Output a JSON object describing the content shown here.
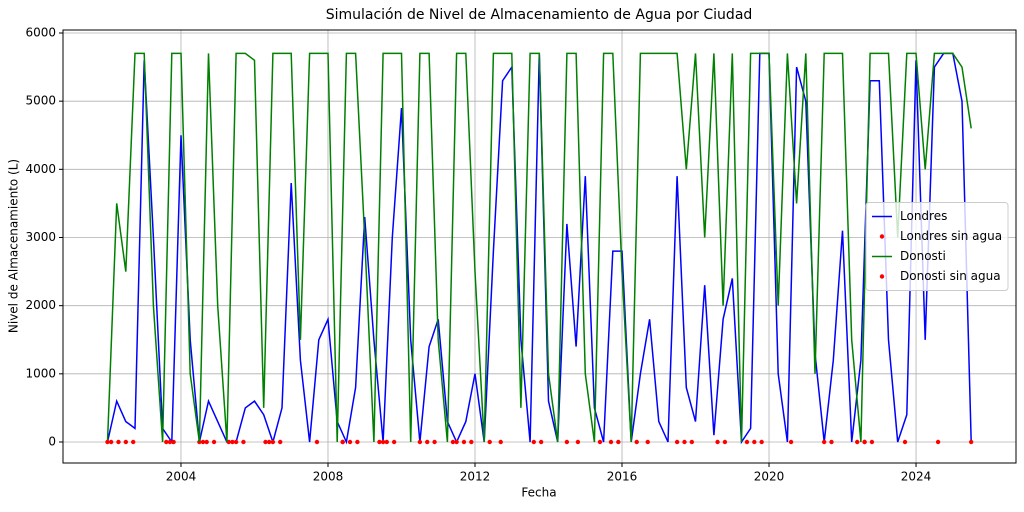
{
  "chart_data": {
    "type": "line",
    "title": "Simulación de Nivel de Almacenamiento de Agua por Ciudad",
    "xlabel": "Fecha",
    "ylabel": "Nivel de Almacenamiento (L)",
    "xlim": [
      2000.79,
      2026.72
    ],
    "ylim": [
      -308,
      6044
    ],
    "xticks": [
      2004,
      2008,
      2012,
      2016,
      2020,
      2024
    ],
    "yticks": [
      0,
      1000,
      2000,
      3000,
      4000,
      5000,
      6000
    ],
    "grid": true,
    "legend": "center right",
    "x": [
      2002,
      2002.25,
      2002.5,
      2002.75,
      2003,
      2003.25,
      2003.5,
      2003.75,
      2004,
      2004.25,
      2004.5,
      2004.75,
      2005,
      2005.25,
      2005.5,
      2005.75,
      2006,
      2006.25,
      2006.5,
      2006.75,
      2007,
      2007.25,
      2007.5,
      2007.75,
      2008,
      2008.25,
      2008.5,
      2008.75,
      2009,
      2009.25,
      2009.5,
      2009.75,
      2010,
      2010.25,
      2010.5,
      2010.75,
      2011,
      2011.25,
      2011.5,
      2011.75,
      2012,
      2012.25,
      2012.5,
      2012.75,
      2013,
      2013.25,
      2013.5,
      2013.75,
      2014,
      2014.25,
      2014.5,
      2014.75,
      2015,
      2015.25,
      2015.5,
      2015.75,
      2016,
      2016.25,
      2016.5,
      2016.75,
      2017,
      2017.25,
      2017.5,
      2017.75,
      2018,
      2018.25,
      2018.5,
      2018.75,
      2019,
      2019.25,
      2019.5,
      2019.75,
      2020,
      2020.25,
      2020.5,
      2020.75,
      2021,
      2021.25,
      2021.5,
      2021.75,
      2022,
      2022.25,
      2022.5,
      2022.75,
      2023,
      2023.25,
      2023.5,
      2023.75,
      2024,
      2024.25,
      2024.5,
      2024.75,
      2025,
      2025.25,
      2025.5
    ],
    "series": [
      {
        "name": "Londres",
        "kind": "line",
        "color": "#0000ff",
        "values": [
          0,
          600,
          300,
          200,
          5600,
          3000,
          200,
          0,
          4500,
          1500,
          0,
          600,
          300,
          0,
          0,
          500,
          600,
          400,
          0,
          500,
          3800,
          1200,
          0,
          1500,
          1800,
          300,
          0,
          800,
          3300,
          1500,
          0,
          3000,
          4900,
          1500,
          0,
          1400,
          1800,
          300,
          0,
          300,
          1000,
          0,
          2800,
          5300,
          5500,
          1500,
          0,
          5700,
          600,
          0,
          3200,
          1400,
          3900,
          500,
          0,
          2800,
          2800,
          0,
          1000,
          1800,
          300,
          0,
          3900,
          800,
          300,
          2300,
          100,
          1800,
          2400,
          0,
          200,
          5700,
          5700,
          1000,
          0,
          5500,
          5000,
          1300,
          0,
          1200,
          3100,
          0,
          1200,
          5300,
          5300,
          1500,
          0,
          400,
          5600,
          1500,
          5500,
          5700,
          5700,
          5000,
          0
        ]
      },
      {
        "name": "Londres sin agua",
        "kind": "scatter",
        "color": "#ff0000",
        "x": [
          2002.1,
          2002.3,
          2002.5,
          2002.7,
          2003.6,
          2003.8,
          2004.5,
          2004.7,
          2004.9,
          2005.3,
          2005.5,
          2005.7,
          2006.3,
          2006.5,
          2006.7,
          2007.7,
          2008.4,
          2008.6,
          2008.8,
          2009.4,
          2009.6,
          2009.8,
          2010.7,
          2010.9,
          2011.5,
          2011.7,
          2011.9,
          2012.7,
          2013.6,
          2013.8,
          2014.8,
          2015.7,
          2015.9,
          2016.7,
          2017.5,
          2017.7,
          2017.9,
          2018.6,
          2018.8,
          2019.6,
          2019.8,
          2020.6,
          2021.5,
          2021.7,
          2022.4,
          2022.6,
          2022.8,
          2023.7,
          2024.6,
          2025.5
        ],
        "values": [
          0,
          0,
          0,
          0,
          0,
          0,
          0,
          0,
          0,
          0,
          0,
          0,
          0,
          0,
          0,
          0,
          0,
          0,
          0,
          0,
          0,
          0,
          0,
          0,
          0,
          0,
          0,
          0,
          0,
          0,
          0,
          0,
          0,
          0,
          0,
          0,
          0,
          0,
          0,
          0,
          0,
          0,
          0,
          0,
          0,
          0,
          0,
          0,
          0,
          0
        ]
      },
      {
        "name": "Donosti",
        "kind": "line",
        "color": "#008000",
        "values": [
          0,
          3500,
          2500,
          5700,
          5700,
          2000,
          0,
          5700,
          5700,
          1000,
          0,
          5700,
          2000,
          0,
          5700,
          5700,
          5600,
          500,
          5700,
          5700,
          5700,
          1500,
          5700,
          5700,
          5700,
          0,
          5700,
          5700,
          3000,
          0,
          5700,
          5700,
          5700,
          0,
          5700,
          5700,
          1500,
          0,
          5700,
          5700,
          2500,
          0,
          5700,
          5700,
          5700,
          500,
          5700,
          5700,
          1000,
          0,
          5700,
          5700,
          1000,
          0,
          5700,
          5700,
          2500,
          0,
          5700,
          5700,
          5700,
          5700,
          5700,
          4000,
          5700,
          3000,
          5700,
          2000,
          5700,
          0,
          5700,
          5700,
          5700,
          2000,
          5700,
          3500,
          5700,
          1000,
          5700,
          5700,
          5700,
          1500,
          0,
          5700,
          5700,
          5700,
          3000,
          5700,
          5700,
          4000,
          5700,
          5700,
          5700,
          5500,
          4600
        ]
      },
      {
        "name": "Donosti sin agua",
        "kind": "scatter",
        "color": "#ff0000",
        "x": [
          2002.0,
          2003.7,
          2004.6,
          2005.4,
          2006.4,
          2008.4,
          2009.5,
          2010.5,
          2011.4,
          2012.4,
          2014.5,
          2015.4,
          2016.4,
          2019.4,
          2022.6
        ],
        "values": [
          0,
          0,
          0,
          0,
          0,
          0,
          0,
          0,
          0,
          0,
          0,
          0,
          0,
          0,
          0
        ]
      }
    ]
  }
}
